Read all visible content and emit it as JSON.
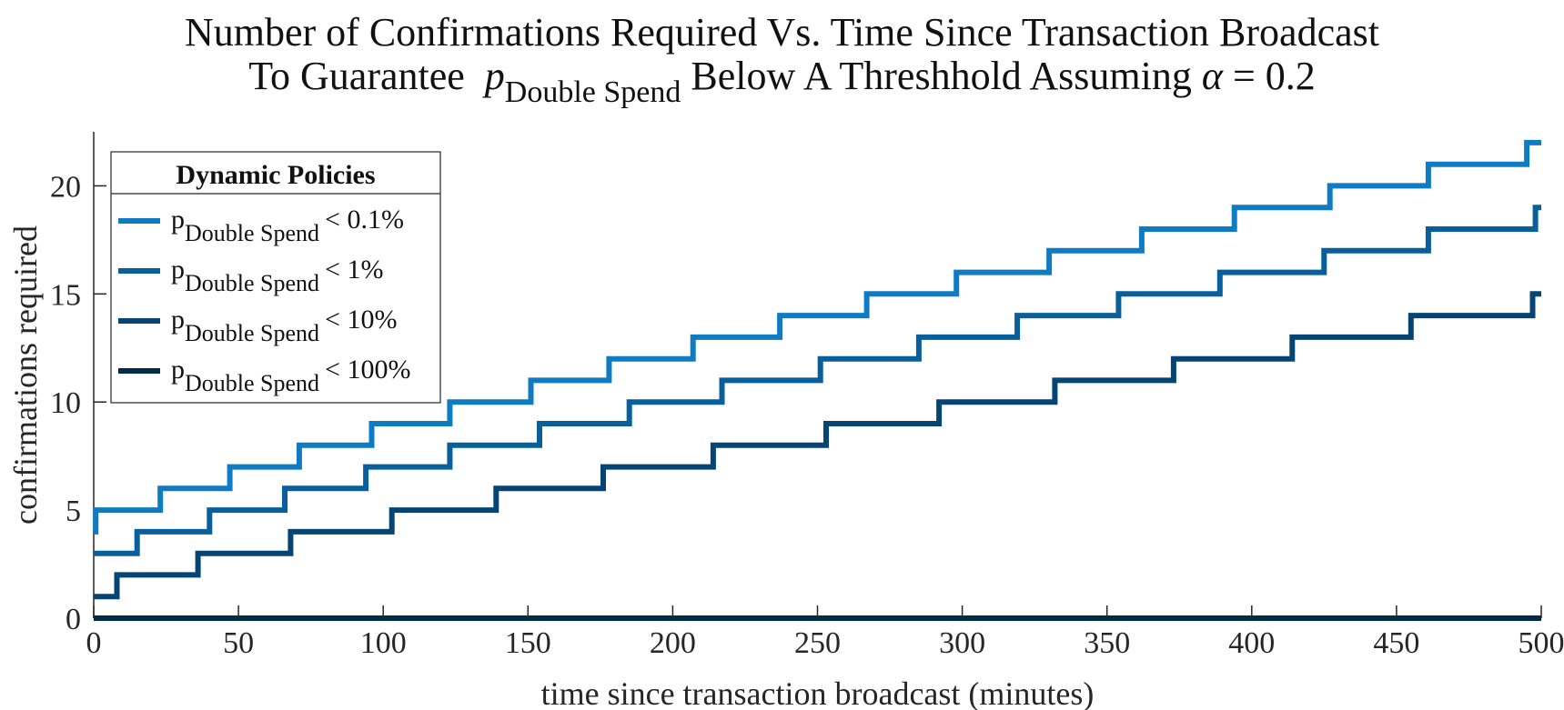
{
  "title": {
    "line1": "Number of Confirmations Required Vs. Time Since Transaction Broadcast",
    "line2_prefix": "To Guarantee",
    "line2_p": "p",
    "line2_sub": "Double Spend",
    "line2_suffix": "Below A Threshhold Assuming",
    "line2_alpha": "α",
    "line2_value": "= 0.2"
  },
  "chart_data": {
    "type": "line",
    "xlabel": "time since transaction broadcast (minutes)",
    "ylabel": "confirmations required",
    "xlim": [
      0,
      500
    ],
    "ylim": [
      0,
      22.5
    ],
    "xticks": [
      0,
      50,
      100,
      150,
      200,
      250,
      300,
      350,
      400,
      450,
      500
    ],
    "yticks": [
      0,
      5,
      10,
      15,
      20
    ],
    "grid": false,
    "legend": {
      "title": "Dynamic Policies",
      "placement": "top-left"
    },
    "series": [
      {
        "name": "p_Double Spend < 0.1%",
        "label_p": "p",
        "label_sub": "Double Spend",
        "label_rest": "< 0.1%",
        "color": "#0f7bc2",
        "start": [
          0,
          4
        ],
        "steps": [
          [
            0.7,
            5
          ],
          [
            23,
            6
          ],
          [
            47,
            7
          ],
          [
            71,
            8
          ],
          [
            96,
            9
          ],
          [
            123,
            10
          ],
          [
            151,
            11
          ],
          [
            178,
            12
          ],
          [
            207,
            13
          ],
          [
            237,
            14
          ],
          [
            267,
            15
          ],
          [
            298,
            16
          ],
          [
            330,
            17
          ],
          [
            362,
            18
          ],
          [
            394,
            19
          ],
          [
            427,
            20
          ],
          [
            461,
            21
          ],
          [
            495,
            22
          ]
        ],
        "end_x": 500
      },
      {
        "name": "p_Double Spend < 1%",
        "label_p": "p",
        "label_sub": "Double Spend",
        "label_rest": "< 1%",
        "color": "#075f9c",
        "start": [
          0,
          3
        ],
        "steps": [
          [
            15,
            4
          ],
          [
            40,
            5
          ],
          [
            66,
            6
          ],
          [
            94,
            7
          ],
          [
            123,
            8
          ],
          [
            154,
            9
          ],
          [
            185,
            10
          ],
          [
            217,
            11
          ],
          [
            251,
            12
          ],
          [
            285,
            13
          ],
          [
            319,
            14
          ],
          [
            354,
            15
          ],
          [
            389,
            16
          ],
          [
            425,
            17
          ],
          [
            461,
            18
          ],
          [
            498,
            19
          ]
        ],
        "end_x": 500
      },
      {
        "name": "p_Double Spend < 10%",
        "label_p": "p",
        "label_sub": "Double Spend",
        "label_rest": "< 10%",
        "color": "#054574",
        "start": [
          0,
          1
        ],
        "steps": [
          [
            8,
            2
          ],
          [
            36,
            3
          ],
          [
            68,
            4
          ],
          [
            103,
            5
          ],
          [
            139,
            6
          ],
          [
            176,
            7
          ],
          [
            214,
            8
          ],
          [
            253,
            9
          ],
          [
            292,
            10
          ],
          [
            332,
            11
          ],
          [
            373,
            12
          ],
          [
            414,
            13
          ],
          [
            455,
            14
          ],
          [
            497,
            15
          ]
        ],
        "end_x": 500
      },
      {
        "name": "p_Double Spend < 100%",
        "label_p": "p",
        "label_sub": "Double Spend",
        "label_rest": "< 100%",
        "color": "#032b48",
        "start": [
          0,
          0
        ],
        "steps": [],
        "end_x": 500
      }
    ]
  }
}
